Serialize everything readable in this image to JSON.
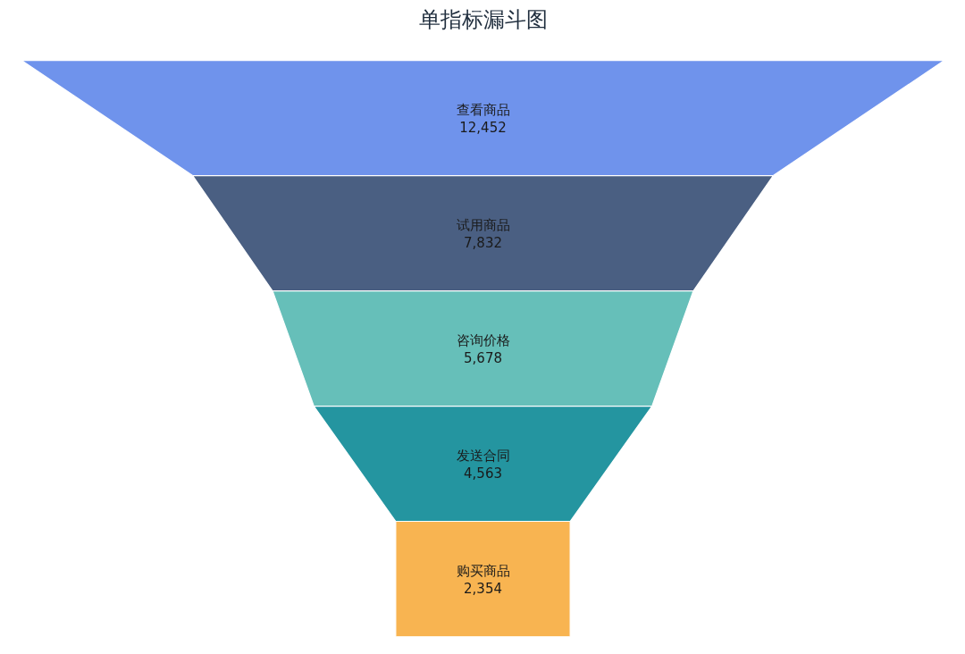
{
  "chart_data": {
    "type": "other",
    "title": "单指标漏斗图",
    "categories": [
      "查看商品",
      "试用商品",
      "咨询价格",
      "发送合同",
      "购买商品"
    ],
    "values": [
      12452,
      7832,
      5678,
      4563,
      2354
    ],
    "value_labels": [
      "12,452",
      "7,832",
      "5,678",
      "4,563",
      "2,354"
    ],
    "colors": [
      "#6f93ec",
      "#4a5f82",
      "#66bfb9",
      "#2495a0",
      "#f8b451"
    ]
  }
}
